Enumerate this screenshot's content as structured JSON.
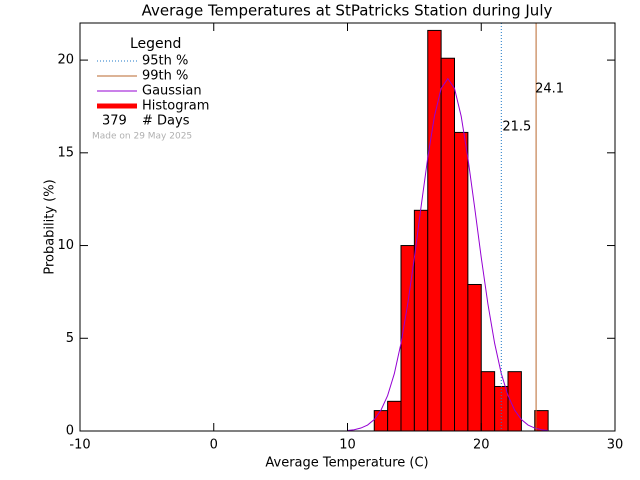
{
  "chart_data": {
    "type": "histogram",
    "title": "Average Temperatures at StPatricks Station during July",
    "xlabel": "Average Temperature (C)",
    "ylabel": "Probability (%)",
    "name": "Histogram",
    "color": "#ff0000",
    "bins": [
      12,
      13,
      14,
      15,
      16,
      17,
      18,
      19,
      20,
      21,
      22,
      23,
      24,
      25
    ],
    "values": [
      1.1,
      1.6,
      10.0,
      11.9,
      21.6,
      20.1,
      16.1,
      7.9,
      3.2,
      2.4,
      3.2,
      0,
      1.1
    ],
    "gaussian": {
      "name": "Gaussian",
      "color": "#9400d3",
      "x": [
        10,
        10.5,
        11,
        11.5,
        12,
        12.5,
        13,
        13.5,
        14,
        14.5,
        15,
        15.5,
        16,
        16.5,
        17,
        17.5,
        18,
        18.5,
        19,
        19.5,
        20,
        20.5,
        21,
        21.5,
        22,
        22.5,
        23,
        23.5,
        24,
        24.5,
        25
      ],
      "values": [
        0.03,
        0.07,
        0.16,
        0.32,
        0.62,
        1.12,
        1.91,
        3.09,
        4.73,
        6.84,
        9.35,
        12.09,
        14.73,
        16.97,
        18.47,
        19.0,
        18.47,
        16.97,
        14.73,
        12.09,
        9.35,
        6.84,
        4.73,
        3.09,
        1.91,
        1.12,
        0.62,
        0.32,
        0.16,
        0.07,
        0.03
      ]
    },
    "percentiles": [
      {
        "name": "95th %",
        "value": 21.5,
        "color": "#1f7ac8",
        "style": "dotted"
      },
      {
        "name": "99th %",
        "value": 24.1,
        "color": "#b8672e",
        "style": "solid"
      }
    ],
    "legend_title": "Legend",
    "days": 379,
    "days_label": "# Days",
    "note": "Made on 29 May 2025",
    "xlim": [
      -10,
      30
    ],
    "xticks": [
      -10,
      0,
      10,
      20,
      30
    ],
    "ylim": [
      0,
      22
    ],
    "yticks": [
      0,
      5,
      10,
      15,
      20
    ]
  }
}
